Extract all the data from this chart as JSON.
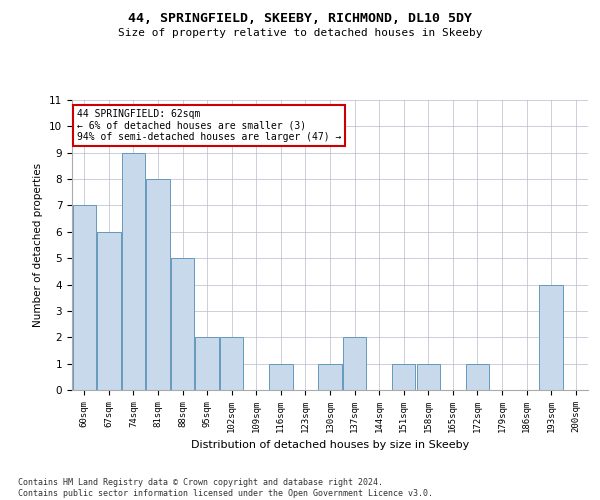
{
  "title": "44, SPRINGFIELD, SKEEBY, RICHMOND, DL10 5DY",
  "subtitle": "Size of property relative to detached houses in Skeeby",
  "xlabel": "Distribution of detached houses by size in Skeeby",
  "ylabel": "Number of detached properties",
  "categories": [
    "60sqm",
    "67sqm",
    "74sqm",
    "81sqm",
    "88sqm",
    "95sqm",
    "102sqm",
    "109sqm",
    "116sqm",
    "123sqm",
    "130sqm",
    "137sqm",
    "144sqm",
    "151sqm",
    "158sqm",
    "165sqm",
    "172sqm",
    "179sqm",
    "186sqm",
    "193sqm",
    "200sqm"
  ],
  "values": [
    7,
    6,
    9,
    8,
    5,
    2,
    2,
    0,
    1,
    0,
    1,
    2,
    0,
    1,
    1,
    0,
    1,
    0,
    0,
    4,
    0
  ],
  "bar_color": "#c8d9ec",
  "bar_edge_color": "#6699bb",
  "annotation_text": "44 SPRINGFIELD: 62sqm\n← 6% of detached houses are smaller (3)\n94% of semi-detached houses are larger (47) →",
  "annotation_box_color": "#ffffff",
  "annotation_box_edge": "#cc0000",
  "ylim": [
    0,
    11
  ],
  "yticks": [
    0,
    1,
    2,
    3,
    4,
    5,
    6,
    7,
    8,
    9,
    10,
    11
  ],
  "footer_text": "Contains HM Land Registry data © Crown copyright and database right 2024.\nContains public sector information licensed under the Open Government Licence v3.0.",
  "bg_color": "#ffffff",
  "grid_color": "#bbbbcc"
}
